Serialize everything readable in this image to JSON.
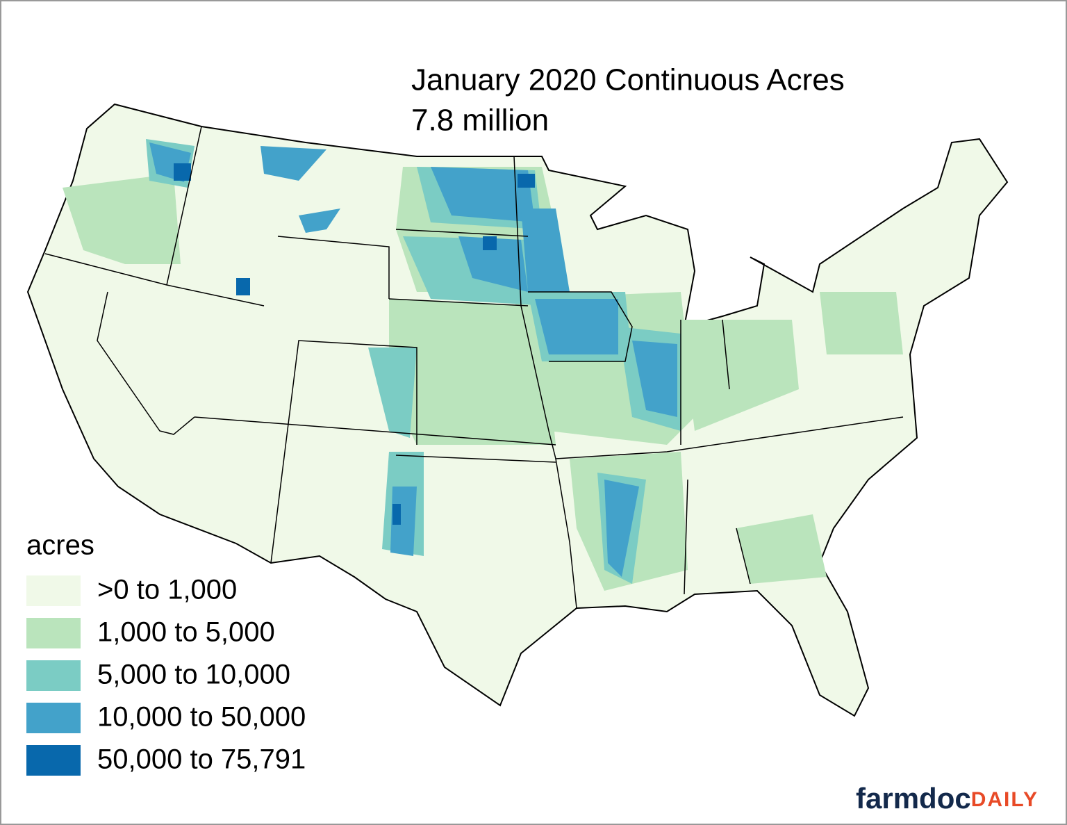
{
  "title": "January 2020 Continuous Acres",
  "subtitle": "7.8 million",
  "legend": {
    "title": "acres",
    "items": [
      {
        "label": ">0 to 1,000",
        "color": "#f0f9e8"
      },
      {
        "label": "1,000 to 5,000",
        "color": "#bae4bc"
      },
      {
        "label": "5,000 to 10,000",
        "color": "#7bccc4"
      },
      {
        "label": "10,000 to 50,000",
        "color": "#43a2ca"
      },
      {
        "label": "50,000 to 75,791",
        "color": "#0868ac"
      }
    ]
  },
  "logo": {
    "brand": "farmdoc",
    "suffix": "DAILY"
  }
}
